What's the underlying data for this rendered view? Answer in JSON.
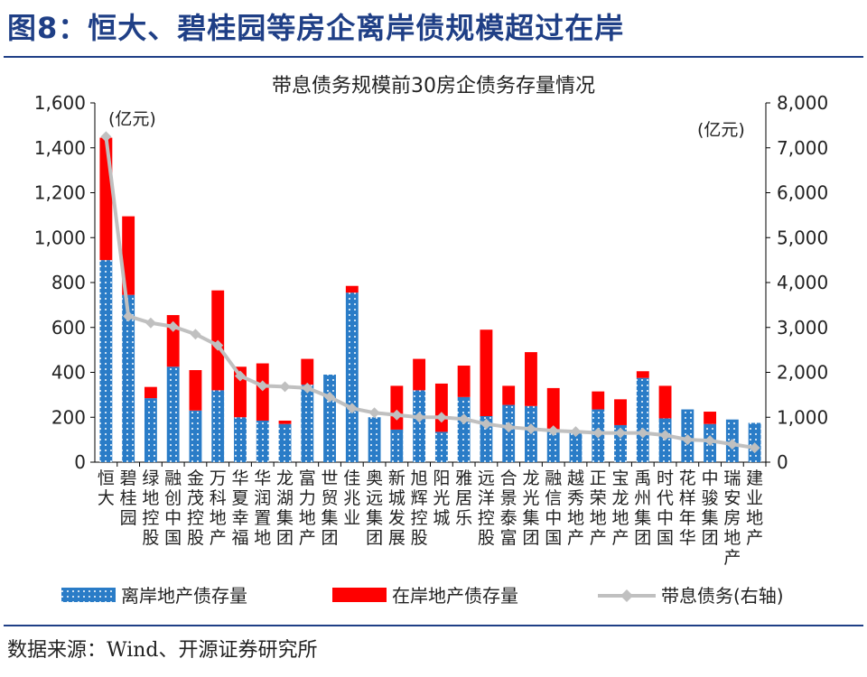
{
  "figure_title": "图8：恒大、碧桂园等房企离岸债规模超过在岸",
  "source": "数据来源：Wind、开源证券研究所",
  "colors": {
    "offshore": "#2a7cc7",
    "onshore": "#ff0000",
    "line": "#c0c0c0",
    "title": "#1f3f86"
  },
  "chart_data": {
    "type": "bar",
    "stacked": true,
    "title": "带息债务规模前30房企债务存量情况",
    "left_unit": "(亿元)",
    "right_unit": "(亿元)",
    "ylim": [
      0,
      1600
    ],
    "y_ticks": [
      "0",
      "200",
      "400",
      "600",
      "800",
      "1,000",
      "1,200",
      "1,400",
      "1,600"
    ],
    "y2lim": [
      0,
      8000
    ],
    "y2_ticks": [
      "0",
      "1,000",
      "2,000",
      "3,000",
      "4,000",
      "5,000",
      "6,000",
      "7,000",
      "8,000"
    ],
    "grid": false,
    "legend_position": "bottom",
    "categories": [
      "恒大",
      "碧桂园",
      "绿地控股",
      "融创中国",
      "金茂控股",
      "万科地产",
      "华夏幸福",
      "华润置地",
      "龙湖集团",
      "富力地产",
      "世贸集团",
      "佳兆业",
      "奥远集团",
      "新城发展",
      "旭辉控股",
      "阳光城",
      "雅居乐",
      "远洋控股",
      "合景泰富",
      "龙光集团",
      "融信中国",
      "越秀地产",
      "正荣地产",
      "宝龙地产",
      "禹州集团",
      "时代中国",
      "花样年华",
      "中骏集团",
      "瑞安房地产",
      "建业地产"
    ],
    "series": [
      {
        "name": "离岸地产债存量",
        "axis": "left",
        "kind": "bar",
        "values": [
          900,
          745,
          285,
          425,
          230,
          320,
          200,
          185,
          170,
          345,
          390,
          755,
          200,
          145,
          320,
          135,
          290,
          205,
          255,
          250,
          140,
          130,
          235,
          165,
          375,
          195,
          235,
          170,
          190,
          175
        ]
      },
      {
        "name": "在岸地产债存量",
        "axis": "left",
        "kind": "bar",
        "values": [
          545,
          350,
          50,
          230,
          180,
          445,
          225,
          255,
          15,
          115,
          0,
          30,
          0,
          195,
          140,
          215,
          140,
          385,
          85,
          240,
          190,
          0,
          80,
          115,
          30,
          145,
          0,
          55,
          0,
          0
        ]
      },
      {
        "name": "带息债务(右轴)",
        "axis": "right",
        "kind": "line",
        "values": [
          7250,
          3250,
          3100,
          3020,
          2850,
          2600,
          1920,
          1700,
          1680,
          1650,
          1450,
          1200,
          1100,
          1050,
          1000,
          1000,
          960,
          850,
          780,
          740,
          700,
          680,
          650,
          650,
          650,
          600,
          500,
          480,
          400,
          320
        ]
      }
    ]
  }
}
